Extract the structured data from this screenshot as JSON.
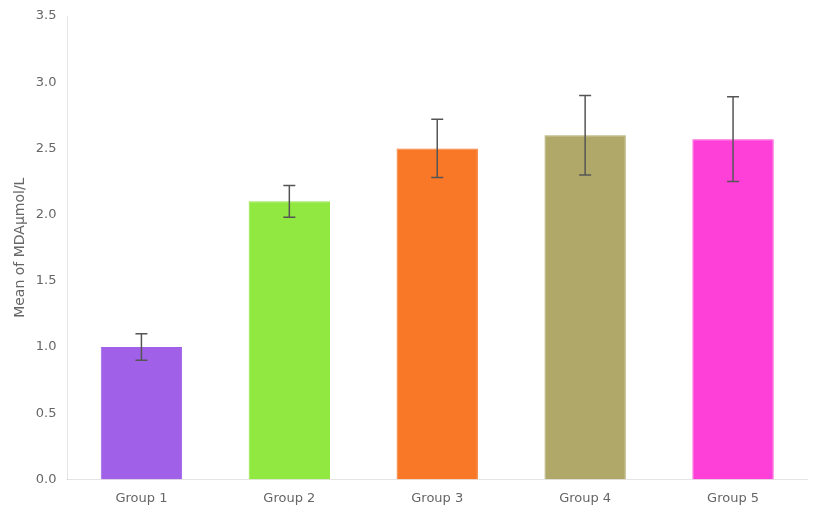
{
  "chart_data": {
    "type": "bar",
    "categories": [
      "Group 1",
      "Group 2",
      "Group 3",
      "Group 4",
      "Group 5"
    ],
    "values": [
      1.0,
      2.1,
      2.5,
      2.6,
      2.57
    ],
    "errors": [
      0.1,
      0.12,
      0.22,
      0.3,
      0.32
    ],
    "colors": [
      "#A060E8",
      "#90E840",
      "#F87828",
      "#B0A868",
      "#FF40D8"
    ],
    "ylabel": "Mean of MDAμmol/L",
    "ylim": [
      0.0,
      3.5
    ],
    "yticks": [
      {
        "value": 0,
        "label": "0.0"
      },
      0.5,
      {
        "value": 1,
        "label": "1.0"
      },
      1.5,
      {
        "value": 2,
        "label": "2.0"
      },
      2.5,
      {
        "value": 3,
        "label": "3.0"
      },
      3.5
    ],
    "grid": false
  }
}
